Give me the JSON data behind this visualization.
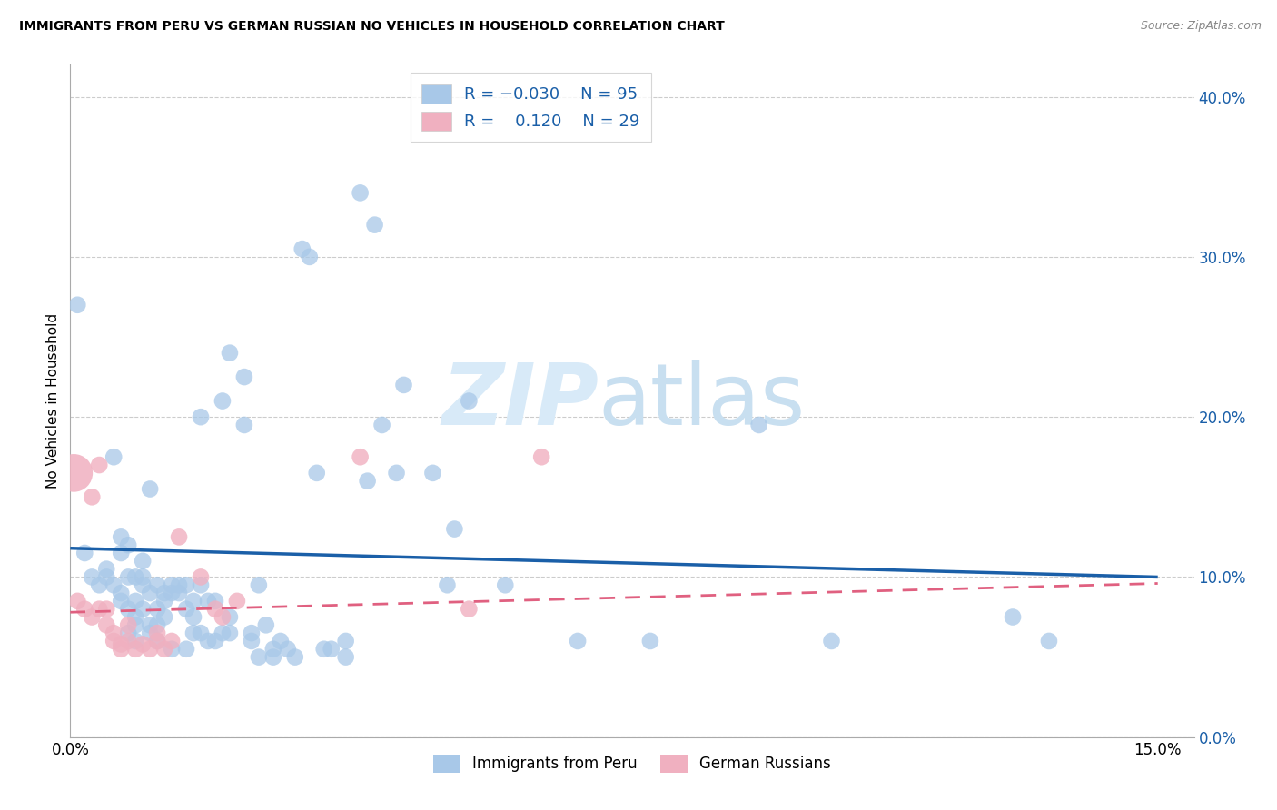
{
  "title": "IMMIGRANTS FROM PERU VS GERMAN RUSSIAN NO VEHICLES IN HOUSEHOLD CORRELATION CHART",
  "source": "Source: ZipAtlas.com",
  "ylabel": "No Vehicles in Household",
  "legend_label1": "Immigrants from Peru",
  "legend_label2": "German Russians",
  "blue_color": "#a8c8e8",
  "pink_color": "#f0b0c0",
  "blue_line_color": "#1a5fa8",
  "pink_line_color": "#e06080",
  "watermark_zip": "ZIP",
  "watermark_atlas": "atlas",
  "blue_scatter": [
    [
      0.001,
      0.27
    ],
    [
      0.002,
      0.115
    ],
    [
      0.003,
      0.1
    ],
    [
      0.004,
      0.095
    ],
    [
      0.005,
      0.1
    ],
    [
      0.005,
      0.105
    ],
    [
      0.006,
      0.175
    ],
    [
      0.006,
      0.095
    ],
    [
      0.007,
      0.09
    ],
    [
      0.007,
      0.085
    ],
    [
      0.007,
      0.115
    ],
    [
      0.007,
      0.125
    ],
    [
      0.008,
      0.12
    ],
    [
      0.008,
      0.08
    ],
    [
      0.008,
      0.1
    ],
    [
      0.008,
      0.065
    ],
    [
      0.009,
      0.075
    ],
    [
      0.009,
      0.085
    ],
    [
      0.009,
      0.07
    ],
    [
      0.009,
      0.06
    ],
    [
      0.009,
      0.1
    ],
    [
      0.01,
      0.1
    ],
    [
      0.01,
      0.11
    ],
    [
      0.01,
      0.095
    ],
    [
      0.01,
      0.08
    ],
    [
      0.011,
      0.07
    ],
    [
      0.011,
      0.065
    ],
    [
      0.011,
      0.09
    ],
    [
      0.011,
      0.155
    ],
    [
      0.012,
      0.095
    ],
    [
      0.012,
      0.07
    ],
    [
      0.012,
      0.08
    ],
    [
      0.012,
      0.06
    ],
    [
      0.013,
      0.09
    ],
    [
      0.013,
      0.075
    ],
    [
      0.013,
      0.085
    ],
    [
      0.014,
      0.09
    ],
    [
      0.014,
      0.055
    ],
    [
      0.014,
      0.095
    ],
    [
      0.015,
      0.09
    ],
    [
      0.015,
      0.095
    ],
    [
      0.016,
      0.08
    ],
    [
      0.016,
      0.095
    ],
    [
      0.016,
      0.055
    ],
    [
      0.017,
      0.065
    ],
    [
      0.017,
      0.075
    ],
    [
      0.017,
      0.085
    ],
    [
      0.018,
      0.065
    ],
    [
      0.018,
      0.095
    ],
    [
      0.018,
      0.2
    ],
    [
      0.019,
      0.085
    ],
    [
      0.019,
      0.06
    ],
    [
      0.02,
      0.06
    ],
    [
      0.02,
      0.085
    ],
    [
      0.021,
      0.21
    ],
    [
      0.021,
      0.065
    ],
    [
      0.022,
      0.065
    ],
    [
      0.022,
      0.075
    ],
    [
      0.022,
      0.24
    ],
    [
      0.024,
      0.195
    ],
    [
      0.024,
      0.225
    ],
    [
      0.025,
      0.065
    ],
    [
      0.025,
      0.06
    ],
    [
      0.026,
      0.095
    ],
    [
      0.026,
      0.05
    ],
    [
      0.027,
      0.07
    ],
    [
      0.028,
      0.055
    ],
    [
      0.028,
      0.05
    ],
    [
      0.029,
      0.06
    ],
    [
      0.03,
      0.055
    ],
    [
      0.031,
      0.05
    ],
    [
      0.032,
      0.305
    ],
    [
      0.033,
      0.3
    ],
    [
      0.034,
      0.165
    ],
    [
      0.035,
      0.055
    ],
    [
      0.036,
      0.055
    ],
    [
      0.038,
      0.05
    ],
    [
      0.038,
      0.06
    ],
    [
      0.04,
      0.34
    ],
    [
      0.041,
      0.16
    ],
    [
      0.042,
      0.32
    ],
    [
      0.043,
      0.195
    ],
    [
      0.045,
      0.165
    ],
    [
      0.046,
      0.22
    ],
    [
      0.05,
      0.165
    ],
    [
      0.052,
      0.095
    ],
    [
      0.053,
      0.13
    ],
    [
      0.055,
      0.21
    ],
    [
      0.06,
      0.095
    ],
    [
      0.07,
      0.06
    ],
    [
      0.08,
      0.06
    ],
    [
      0.095,
      0.195
    ],
    [
      0.105,
      0.06
    ],
    [
      0.13,
      0.075
    ],
    [
      0.135,
      0.06
    ]
  ],
  "pink_scatter": [
    [
      0.001,
      0.085
    ],
    [
      0.002,
      0.08
    ],
    [
      0.003,
      0.075
    ],
    [
      0.003,
      0.15
    ],
    [
      0.004,
      0.08
    ],
    [
      0.004,
      0.17
    ],
    [
      0.005,
      0.07
    ],
    [
      0.005,
      0.08
    ],
    [
      0.006,
      0.06
    ],
    [
      0.006,
      0.065
    ],
    [
      0.007,
      0.058
    ],
    [
      0.007,
      0.055
    ],
    [
      0.008,
      0.06
    ],
    [
      0.008,
      0.07
    ],
    [
      0.009,
      0.055
    ],
    [
      0.01,
      0.058
    ],
    [
      0.011,
      0.055
    ],
    [
      0.012,
      0.065
    ],
    [
      0.012,
      0.06
    ],
    [
      0.013,
      0.055
    ],
    [
      0.014,
      0.06
    ],
    [
      0.015,
      0.125
    ],
    [
      0.018,
      0.1
    ],
    [
      0.02,
      0.08
    ],
    [
      0.021,
      0.075
    ],
    [
      0.023,
      0.085
    ],
    [
      0.04,
      0.175
    ],
    [
      0.055,
      0.08
    ],
    [
      0.065,
      0.175
    ]
  ],
  "blue_line_x": [
    0.0,
    0.15
  ],
  "blue_line_y": [
    0.118,
    0.1
  ],
  "pink_line_x": [
    0.0,
    0.15
  ],
  "pink_line_y": [
    0.078,
    0.096
  ],
  "xlim": [
    0.0,
    0.155
  ],
  "ylim": [
    0.0,
    0.42
  ],
  "figsize": [
    14.06,
    8.92
  ],
  "dpi": 100
}
